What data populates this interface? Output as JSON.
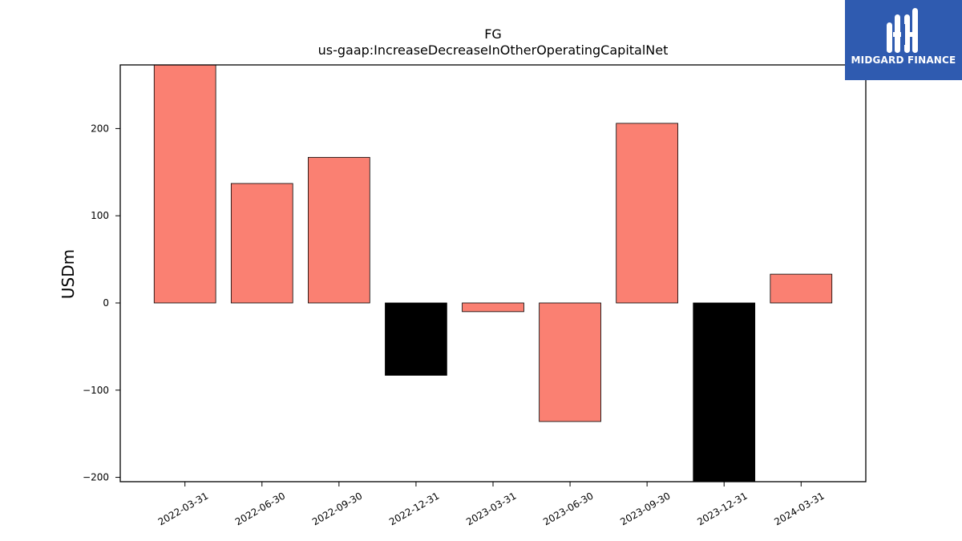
{
  "brand": {
    "name": "MIDGARD FINANCE",
    "color": "#2f5bb0",
    "icon": "midgard-logo-icon"
  },
  "chart_data": {
    "type": "bar",
    "title": "FG",
    "subtitle": "us-gaap:IncreaseDecreaseInOtherOperatingCapitalNet",
    "xlabel": "",
    "ylabel": "USDm",
    "categories": [
      "2022-03-31",
      "2022-06-30",
      "2022-09-30",
      "2022-12-31",
      "2023-03-31",
      "2023-06-30",
      "2023-09-30",
      "2023-12-31",
      "2024-03-31"
    ],
    "values": [
      290,
      137,
      167,
      -83,
      -10,
      -136,
      206,
      -240,
      33
    ],
    "bar_colors": [
      "#fa8072",
      "#fa8072",
      "#fa8072",
      "#000000",
      "#fa8072",
      "#fa8072",
      "#fa8072",
      "#000000",
      "#fa8072"
    ],
    "ylim": [
      -205,
      273
    ],
    "yticks": [
      -200,
      -100,
      0,
      100,
      200
    ],
    "grid": false,
    "legend": "none"
  }
}
